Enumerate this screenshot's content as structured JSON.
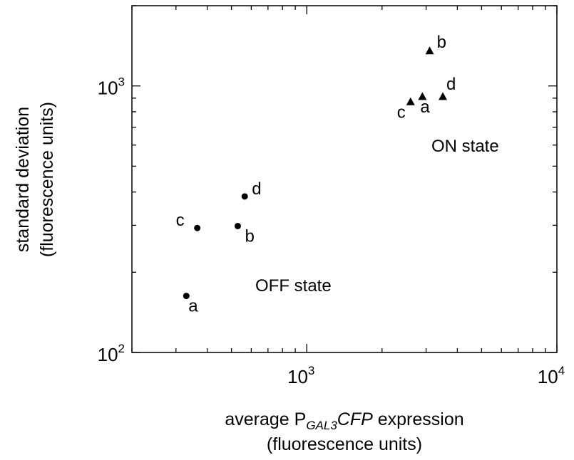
{
  "chart_data": {
    "type": "scatter",
    "x_scale": "log",
    "y_scale": "log",
    "xlim": [
      200,
      10000
    ],
    "ylim": [
      100,
      2000
    ],
    "xlabel_line1_pre": "average P",
    "xlabel_line1_sub": "GAL3",
    "xlabel_line1_italic": "CFP",
    "xlabel_line1_post": " expression",
    "xlabel_line2": "(fluorescence units)",
    "ylabel_line1": "standard deviation",
    "ylabel_line2": "(fluorescence units)",
    "x_ticks": [
      {
        "value": 1000,
        "base": "10",
        "exp": "3"
      },
      {
        "value": 10000,
        "base": "10",
        "exp": "4"
      }
    ],
    "y_ticks": [
      {
        "value": 100,
        "base": "10",
        "exp": "2"
      },
      {
        "value": 1000,
        "base": "10",
        "exp": "3"
      }
    ],
    "grid": false,
    "series": [
      {
        "marker": "circle",
        "points": [
          {
            "label": "a",
            "x": 330,
            "y": 163
          },
          {
            "label": "b",
            "x": 530,
            "y": 298
          },
          {
            "label": "c",
            "x": 365,
            "y": 293
          },
          {
            "label": "d",
            "x": 565,
            "y": 385
          }
        ]
      },
      {
        "marker": "triangle",
        "points": [
          {
            "label": "a",
            "x": 2900,
            "y": 910
          },
          {
            "label": "b",
            "x": 3100,
            "y": 1350
          },
          {
            "label": "c",
            "x": 2600,
            "y": 870
          },
          {
            "label": "d",
            "x": 3500,
            "y": 910
          }
        ]
      }
    ],
    "annotations": [
      "ON state",
      "OFF state"
    ]
  }
}
